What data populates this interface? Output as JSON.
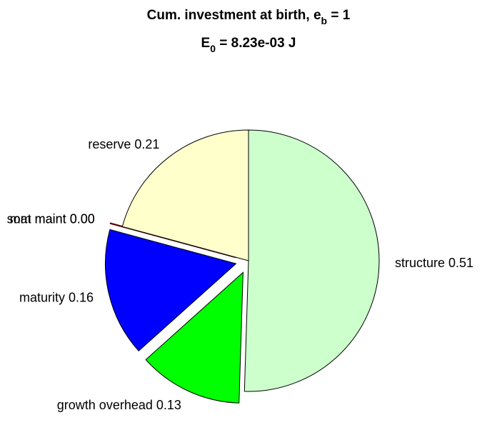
{
  "chart_data": {
    "type": "pie",
    "title": [
      "Cum. investment at birth, e",
      "b",
      " = 1"
    ],
    "subtitle": [
      "E",
      "0",
      " = 8.23e-03 J"
    ],
    "categories": [
      "structure",
      "growth overhead",
      "maturity",
      "som maint",
      "mat maint",
      "reserve"
    ],
    "values": [
      0.51,
      0.13,
      0.16,
      0,
      0,
      0.21
    ],
    "value_labels": [
      "0.51",
      "0.13",
      "0.16",
      "0.00",
      "0.00",
      "0.21"
    ],
    "colors": [
      "#ccffcc",
      "#00ff00",
      "#0000ff",
      "#200000",
      "#600000",
      "#ffffcc"
    ],
    "explode": [
      0,
      1,
      1,
      1,
      1,
      0
    ]
  }
}
